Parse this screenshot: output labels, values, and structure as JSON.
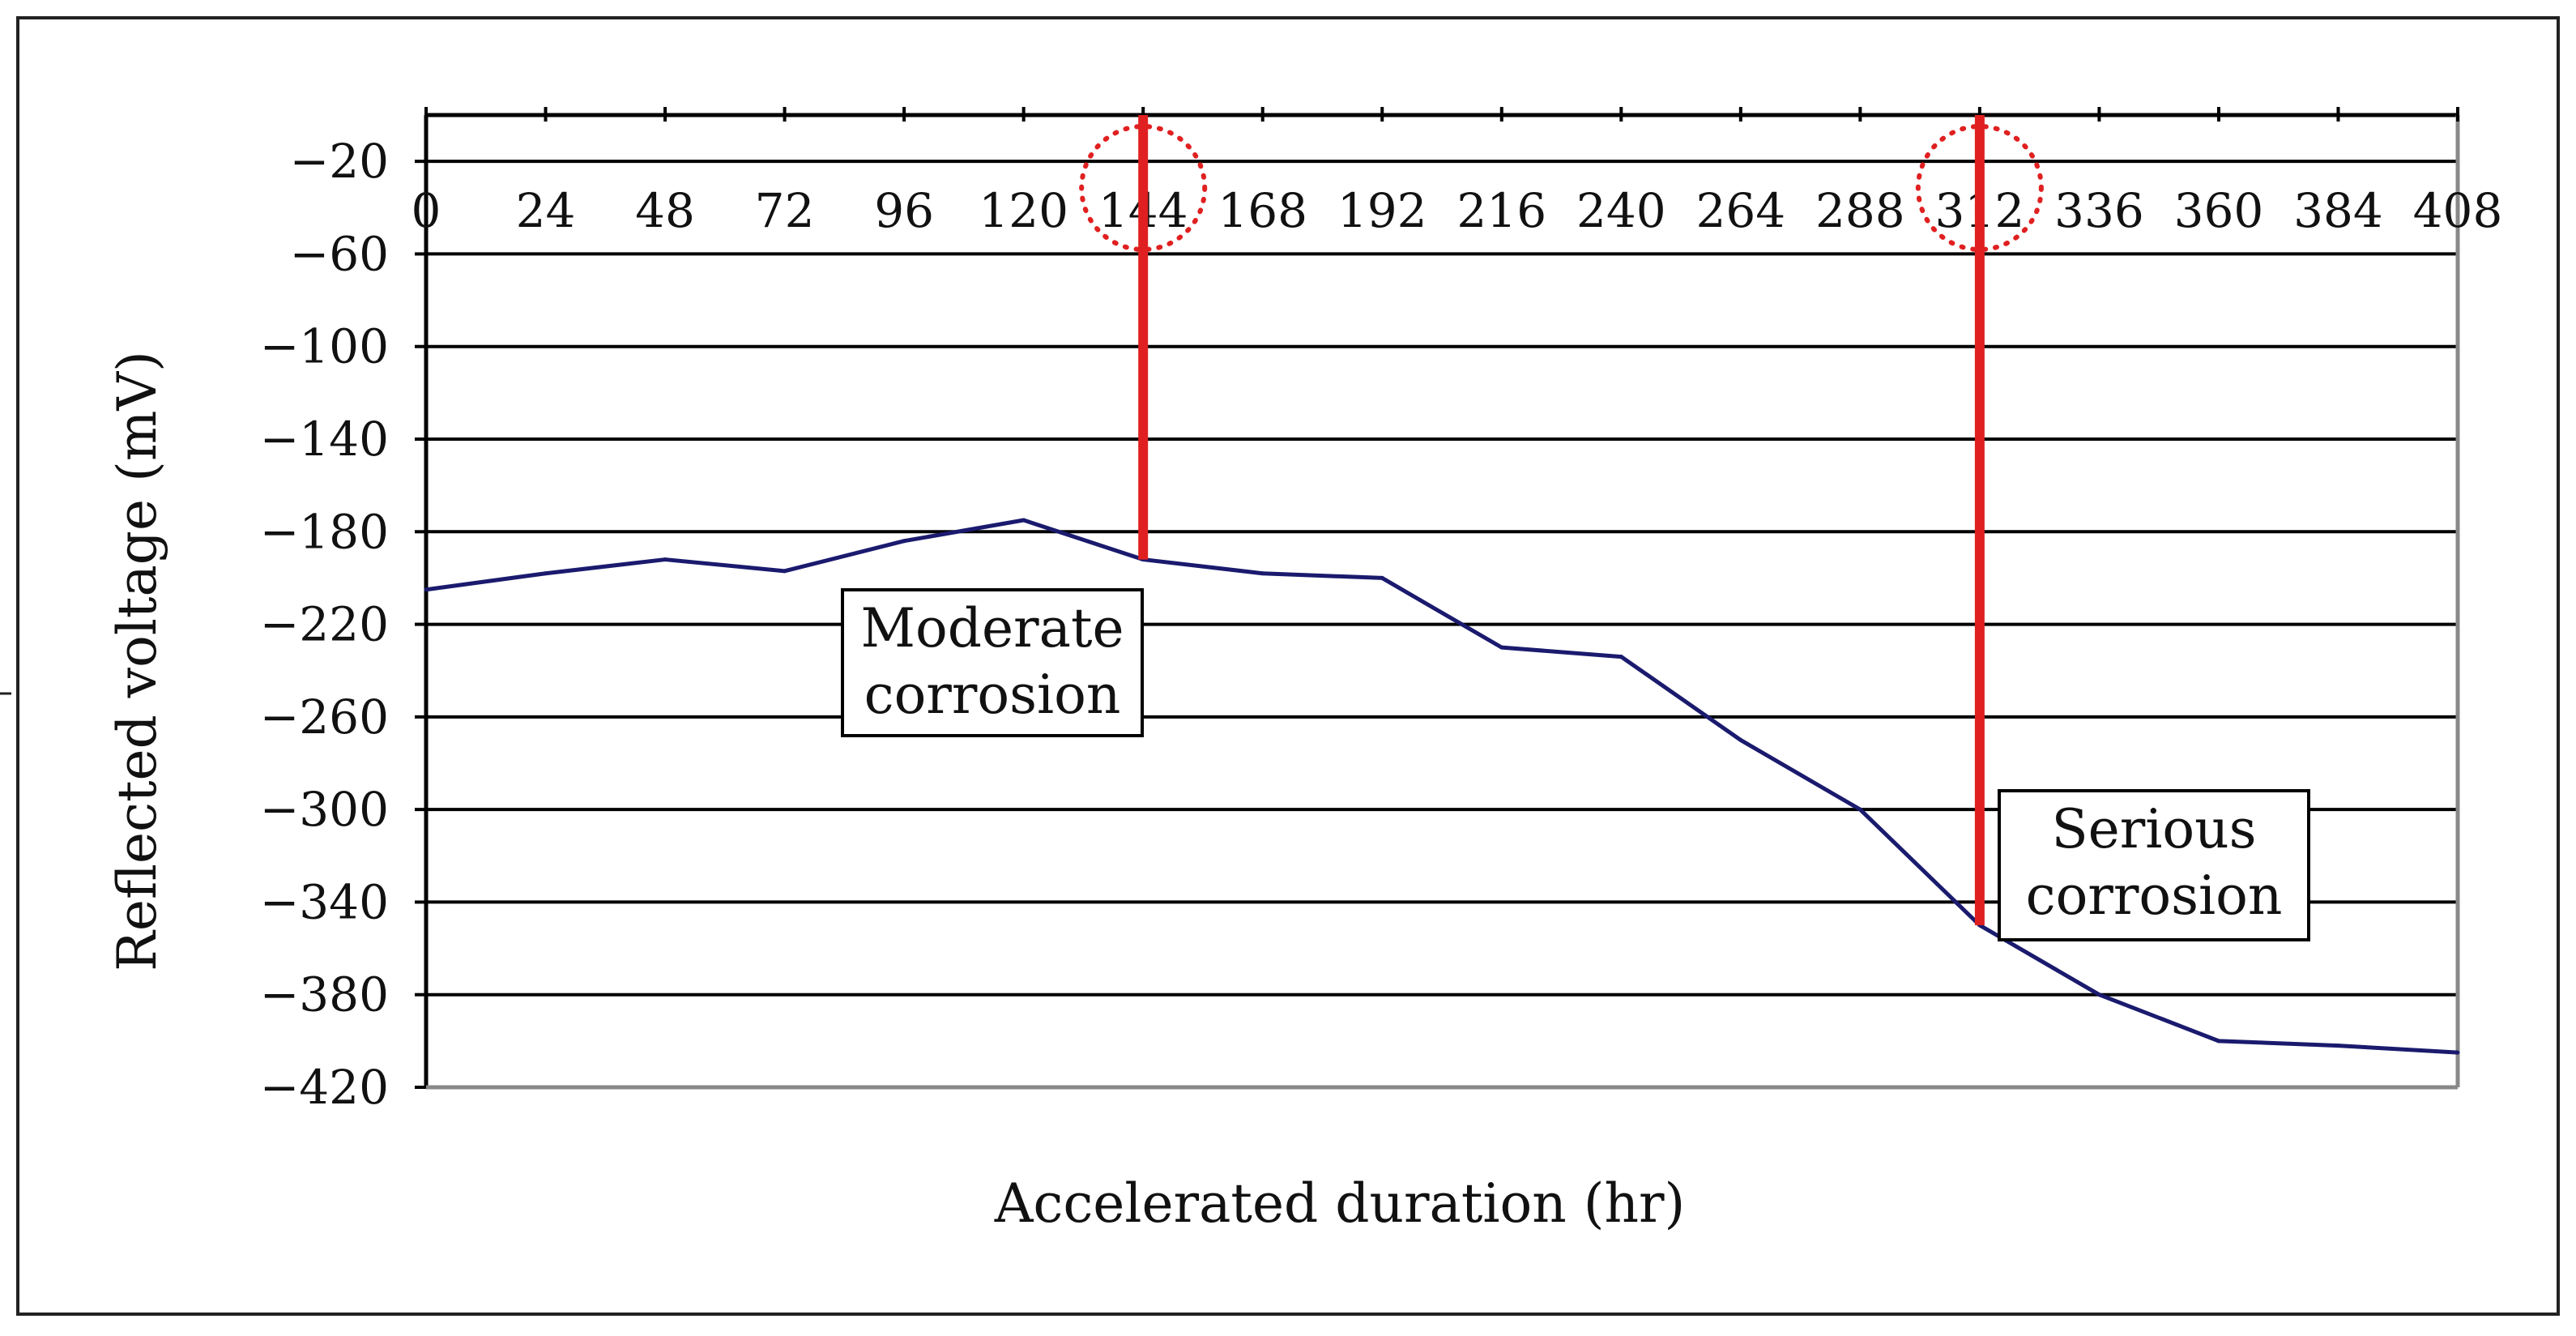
{
  "chart_data": {
    "type": "line",
    "title": "",
    "xlabel": "Accelerated duration (hr)",
    "ylabel": "Reflected voltage (mV)",
    "x": [
      0,
      24,
      48,
      72,
      96,
      120,
      144,
      168,
      192,
      216,
      240,
      264,
      288,
      312,
      336,
      360,
      384,
      408
    ],
    "series": [
      {
        "name": "Reflected voltage",
        "color": "#1a1a6e",
        "values": [
          -205,
          -198,
          -192,
          -197,
          -184,
          -175,
          -192,
          -198,
          -200,
          -230,
          -234,
          -270,
          -300,
          -350,
          -380,
          -400,
          -402,
          -405
        ]
      }
    ],
    "xlim": [
      0,
      408
    ],
    "ylim": [
      -420,
      0
    ],
    "x_tick_labels": [
      "0",
      "24",
      "48",
      "72",
      "96",
      "120",
      "144",
      "168",
      "192",
      "216",
      "240",
      "264",
      "288",
      "312",
      "336",
      "360",
      "384",
      "408"
    ],
    "y_tick_labels": [
      "−20",
      "−60",
      "−100",
      "−140",
      "−180",
      "−220",
      "−260",
      "−300",
      "−340",
      "−380",
      "−420"
    ],
    "y_tick_values": [
      -20,
      -60,
      -100,
      -140,
      -180,
      -220,
      -260,
      -300,
      -340,
      -380,
      -420
    ],
    "grid": true,
    "annotations": [
      {
        "text_lines": [
          "Moderate",
          "corrosion"
        ],
        "at_x": 144,
        "from_y": 0,
        "to_y": -192,
        "line_color": "#e02020",
        "highlight_tick": "144"
      },
      {
        "text_lines": [
          "Serious",
          "corrosion"
        ],
        "at_x": 312,
        "from_y": 0,
        "to_y": -350,
        "line_color": "#e02020",
        "highlight_tick": "312"
      }
    ]
  }
}
